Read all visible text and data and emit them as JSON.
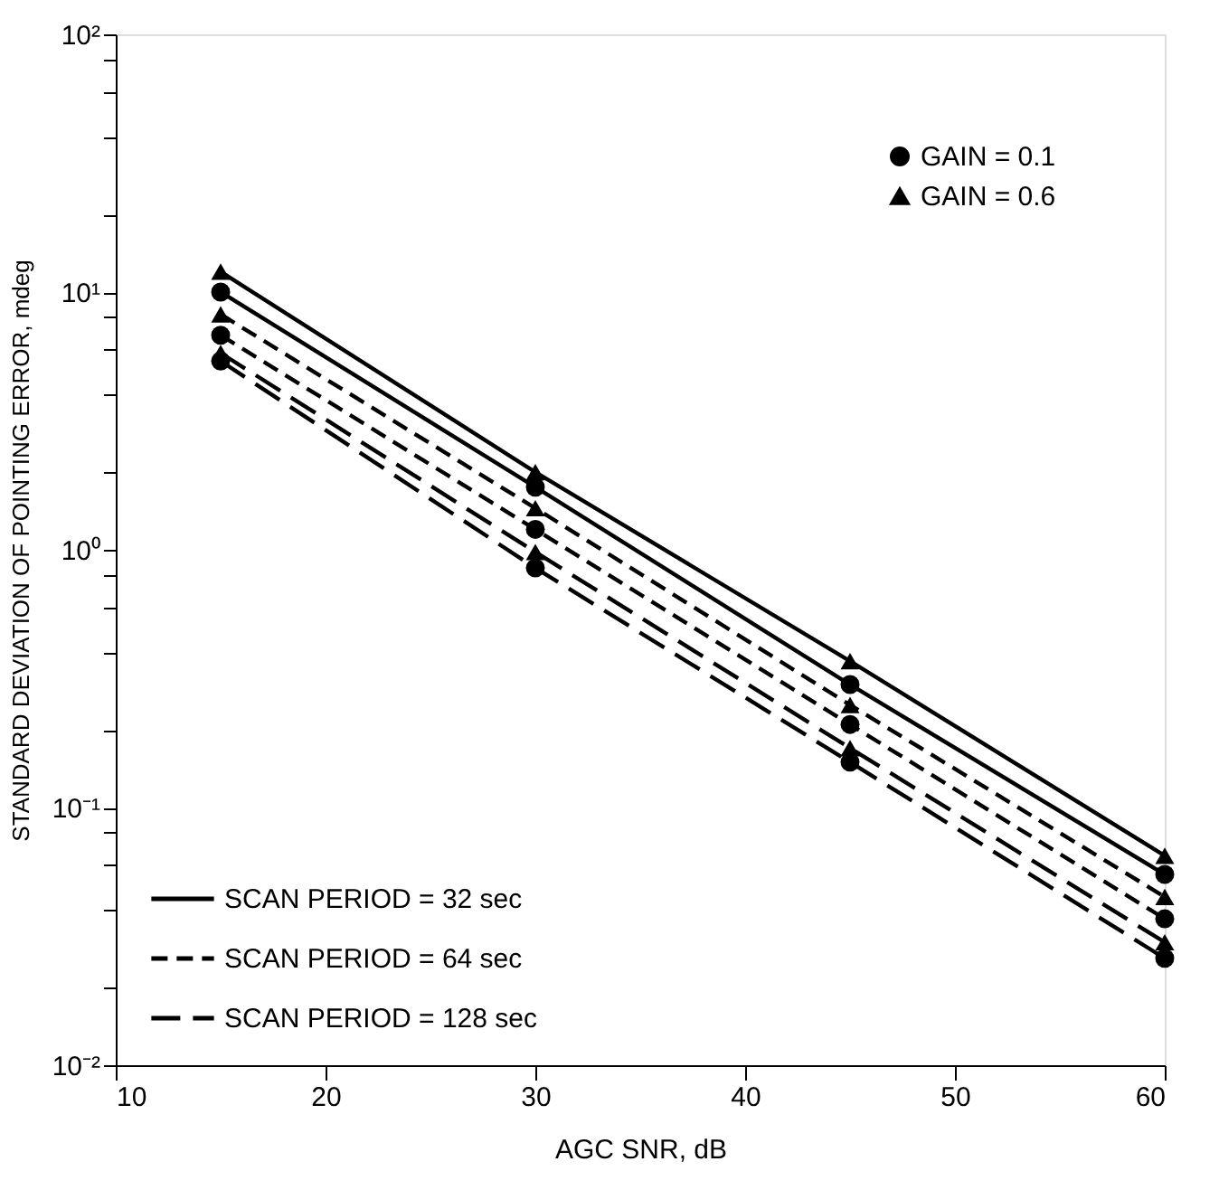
{
  "chart_data": {
    "type": "line",
    "xlabel": "AGC SNR, dB",
    "ylabel": "STANDARD DEVIATION OF POINTING ERROR, mdeg",
    "x": [
      15,
      30,
      45,
      60
    ],
    "series": [
      {
        "name": "SCAN PERIOD = 32 sec",
        "color": "#000000",
        "line_style": "solid",
        "values": [
          12,
          2.0,
          0.37,
          0.065
        ]
      },
      {
        "color": "#000000",
        "line_style": "solid",
        "values": [
          10,
          1.75,
          0.3,
          0.055
        ]
      },
      {
        "name": "SCAN PERIOD = 64 sec",
        "color": "#000000",
        "line_style": "dashed",
        "values": [
          8.2,
          1.45,
          0.25,
          0.045
        ]
      },
      {
        "color": "#000000",
        "line_style": "dashed",
        "values": [
          6.8,
          1.2,
          0.21,
          0.037
        ]
      },
      {
        "name": "SCAN PERIOD = 128 sec",
        "color": "#000000",
        "line_style": "longdash",
        "values": [
          5.8,
          0.98,
          0.17,
          0.03
        ]
      },
      {
        "color": "#000000",
        "line_style": "longdash",
        "values": [
          5.4,
          0.85,
          0.15,
          0.026
        ]
      },
      {
        "name": "GAIN = 0.1",
        "type": "scatter",
        "marker": "circle",
        "color": "#000000",
        "x": [
          15,
          15,
          15,
          30,
          30,
          30,
          45,
          45,
          45,
          60,
          60,
          60
        ],
        "values": [
          10,
          6.8,
          5.4,
          1.75,
          1.2,
          0.85,
          0.3,
          0.21,
          0.15,
          0.055,
          0.037,
          0.026
        ]
      },
      {
        "name": "GAIN = 0.6",
        "type": "scatter",
        "marker": "triangle",
        "color": "#000000",
        "x": [
          15,
          15,
          15,
          30,
          30,
          30,
          45,
          45,
          45,
          60,
          60,
          60
        ],
        "values": [
          12,
          8.2,
          5.8,
          2.0,
          1.45,
          0.98,
          0.37,
          0.25,
          0.17,
          0.065,
          0.045,
          0.03
        ]
      }
    ],
    "log": "y",
    "grid": false,
    "legend": [
      "top right",
      "bottom left"
    ],
    "xlim": [
      10,
      60
    ],
    "xticks": [
      10,
      20,
      30,
      40,
      50,
      60
    ],
    "ylim": [
      0.01,
      100
    ],
    "yticks": [
      {
        "value": 0.01,
        "label": "10⁻²"
      },
      {
        "value": 0.02,
        "label": null
      },
      {
        "value": 0.04,
        "label": null
      },
      {
        "value": 0.06,
        "label": null
      },
      {
        "value": 0.08,
        "label": null
      },
      {
        "value": 0.1,
        "label": "10⁻¹"
      },
      {
        "value": 0.2,
        "label": null
      },
      {
        "value": 0.4,
        "label": null
      },
      {
        "value": 0.6,
        "label": null
      },
      {
        "value": 0.8,
        "label": null
      },
      {
        "value": 1,
        "label": "10⁰"
      },
      {
        "value": 2,
        "label": null
      },
      {
        "value": 4,
        "label": null
      },
      {
        "value": 6,
        "label": null
      },
      {
        "value": 8,
        "label": null
      },
      {
        "value": 10,
        "label": "10¹"
      },
      {
        "value": 20,
        "label": null
      },
      {
        "value": 40,
        "label": null
      },
      {
        "value": 60,
        "label": null
      },
      {
        "value": 80,
        "label": null
      },
      {
        "value": 100,
        "label": "10²"
      }
    ]
  }
}
